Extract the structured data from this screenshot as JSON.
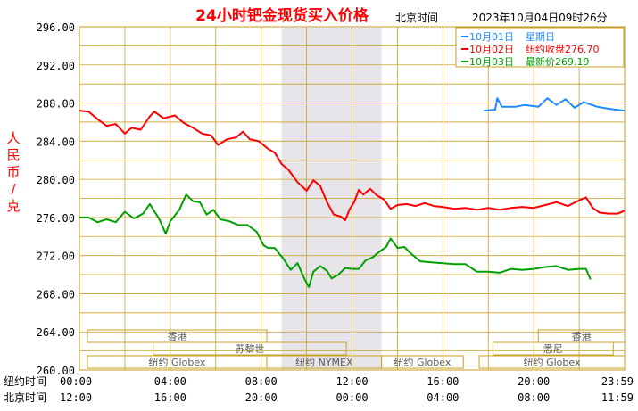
{
  "chart_data": {
    "type": "line",
    "title": "24小时钯金现货买入价格",
    "timezone_label": "北京时间",
    "timestamp": "2023年10月04日09时26分",
    "ylabel": "人民币/克",
    "ylim": [
      260,
      296
    ],
    "yticks": [
      "296.00",
      "292.00",
      "288.00",
      "284.00",
      "280.00",
      "276.00",
      "272.00",
      "268.00",
      "264.00",
      "260.00"
    ],
    "xlim": [
      0,
      24
    ],
    "x_rows": [
      {
        "label": "纽约时间",
        "ticks": [
          "00:00",
          "04:00",
          "08:00",
          "12:00",
          "16:00",
          "20:00",
          "23:59"
        ]
      },
      {
        "label": "北京时间",
        "ticks": [
          "12:00",
          "16:00",
          "20:00",
          "00:00",
          "04:00",
          "08:00",
          "11:59"
        ]
      }
    ],
    "legend": [
      {
        "date": "10月01日",
        "text": "星期日",
        "color": "#1e8bff"
      },
      {
        "date": "10月02日",
        "text": "纽约收盘276.70",
        "color": "#ff0000"
      },
      {
        "date": "10月03日",
        "text": "最新价269.19",
        "color": "#00a000"
      }
    ],
    "shaded_range": [
      8.9,
      13.3
    ],
    "markets": [
      {
        "name": "香港",
        "start": 0.35,
        "end": 8.25,
        "row": 0
      },
      {
        "name": "苏黎世",
        "start": 3.25,
        "end": 11.75,
        "row": 1
      },
      {
        "name": "纽约 Globex",
        "start": 0.35,
        "end": 8.25,
        "row": 2
      },
      {
        "name": "纽约 NYMEX",
        "start": 8.25,
        "end": 13.3,
        "row": 2
      },
      {
        "name": "纽约 Globex",
        "start": 13.3,
        "end": 16.9,
        "row": 2
      },
      {
        "name": "悉尼",
        "start": 18.2,
        "end": 23.5,
        "row": 1
      },
      {
        "name": "香港",
        "start": 20.2,
        "end": 24,
        "row": 0
      },
      {
        "name": "纽约 Globex",
        "start": 17.6,
        "end": 24,
        "row": 2
      }
    ],
    "series": [
      {
        "name": "10月01日",
        "color": "#1e8bff",
        "points": [
          [
            17.8,
            287.2
          ],
          [
            18.3,
            287.3
          ],
          [
            18.4,
            288.5
          ],
          [
            18.6,
            287.6
          ],
          [
            19.2,
            287.6
          ],
          [
            19.6,
            287.8
          ],
          [
            20.2,
            287.6
          ],
          [
            20.6,
            288.5
          ],
          [
            21.0,
            287.8
          ],
          [
            21.4,
            288.4
          ],
          [
            21.8,
            287.5
          ],
          [
            22.2,
            288.1
          ],
          [
            22.8,
            287.6
          ],
          [
            23.3,
            287.4
          ],
          [
            23.99,
            287.2
          ]
        ]
      },
      {
        "name": "10月02日",
        "color": "#ff0000",
        "points": [
          [
            0.0,
            287.2
          ],
          [
            0.4,
            287.1
          ],
          [
            0.8,
            286.3
          ],
          [
            1.2,
            285.6
          ],
          [
            1.6,
            285.8
          ],
          [
            2.0,
            284.8
          ],
          [
            2.3,
            285.4
          ],
          [
            2.7,
            285.2
          ],
          [
            3.1,
            286.6
          ],
          [
            3.3,
            287.1
          ],
          [
            3.7,
            286.4
          ],
          [
            4.2,
            286.7
          ],
          [
            4.6,
            285.9
          ],
          [
            5.0,
            285.4
          ],
          [
            5.4,
            284.8
          ],
          [
            5.8,
            284.6
          ],
          [
            6.1,
            283.6
          ],
          [
            6.5,
            284.2
          ],
          [
            6.9,
            284.4
          ],
          [
            7.2,
            285.0
          ],
          [
            7.5,
            284.2
          ],
          [
            7.9,
            284.0
          ],
          [
            8.3,
            283.2
          ],
          [
            8.6,
            282.8
          ],
          [
            8.9,
            281.6
          ],
          [
            9.2,
            281.0
          ],
          [
            9.6,
            279.7
          ],
          [
            10.0,
            278.8
          ],
          [
            10.3,
            279.9
          ],
          [
            10.6,
            279.3
          ],
          [
            10.9,
            277.6
          ],
          [
            11.2,
            276.3
          ],
          [
            11.5,
            276.1
          ],
          [
            11.7,
            275.7
          ],
          [
            11.9,
            276.9
          ],
          [
            12.1,
            277.6
          ],
          [
            12.3,
            278.9
          ],
          [
            12.5,
            278.4
          ],
          [
            12.8,
            279.0
          ],
          [
            13.1,
            278.3
          ],
          [
            13.4,
            277.9
          ],
          [
            13.7,
            276.9
          ],
          [
            14.0,
            277.3
          ],
          [
            14.4,
            277.4
          ],
          [
            14.8,
            277.2
          ],
          [
            15.2,
            277.5
          ],
          [
            15.6,
            277.2
          ],
          [
            16.0,
            277.1
          ],
          [
            16.5,
            276.9
          ],
          [
            17.0,
            277.0
          ],
          [
            17.5,
            276.8
          ],
          [
            18.0,
            277.0
          ],
          [
            18.5,
            276.8
          ],
          [
            19.0,
            277.0
          ],
          [
            19.5,
            277.1
          ],
          [
            20.0,
            277.0
          ],
          [
            20.5,
            277.3
          ],
          [
            21.0,
            277.6
          ],
          [
            21.5,
            277.2
          ],
          [
            22.0,
            277.8
          ],
          [
            22.3,
            278.1
          ],
          [
            22.6,
            277.0
          ],
          [
            22.9,
            276.5
          ],
          [
            23.3,
            276.4
          ],
          [
            23.7,
            276.4
          ],
          [
            23.99,
            276.7
          ]
        ]
      },
      {
        "name": "10月03日",
        "color": "#00a000",
        "points": [
          [
            0.0,
            276.0
          ],
          [
            0.4,
            276.0
          ],
          [
            0.8,
            275.5
          ],
          [
            1.2,
            275.8
          ],
          [
            1.6,
            275.5
          ],
          [
            2.0,
            276.6
          ],
          [
            2.4,
            275.9
          ],
          [
            2.8,
            276.4
          ],
          [
            3.1,
            277.4
          ],
          [
            3.5,
            275.9
          ],
          [
            3.8,
            274.3
          ],
          [
            4.0,
            275.6
          ],
          [
            4.4,
            276.8
          ],
          [
            4.7,
            278.4
          ],
          [
            5.0,
            277.7
          ],
          [
            5.3,
            277.6
          ],
          [
            5.6,
            276.3
          ],
          [
            5.9,
            276.8
          ],
          [
            6.2,
            275.8
          ],
          [
            6.6,
            275.6
          ],
          [
            7.0,
            275.2
          ],
          [
            7.4,
            275.2
          ],
          [
            7.8,
            274.5
          ],
          [
            8.1,
            273.1
          ],
          [
            8.3,
            272.8
          ],
          [
            8.6,
            272.8
          ],
          [
            9.0,
            271.6
          ],
          [
            9.3,
            270.5
          ],
          [
            9.6,
            271.2
          ],
          [
            9.9,
            269.6
          ],
          [
            10.1,
            268.7
          ],
          [
            10.3,
            270.3
          ],
          [
            10.6,
            270.9
          ],
          [
            10.9,
            270.4
          ],
          [
            11.1,
            269.6
          ],
          [
            11.4,
            270.0
          ],
          [
            11.7,
            270.7
          ],
          [
            12.0,
            270.6
          ],
          [
            12.3,
            270.6
          ],
          [
            12.6,
            271.5
          ],
          [
            12.9,
            271.8
          ],
          [
            13.2,
            272.4
          ],
          [
            13.5,
            272.9
          ],
          [
            13.7,
            273.8
          ],
          [
            14.0,
            272.8
          ],
          [
            14.3,
            272.9
          ],
          [
            14.6,
            272.2
          ],
          [
            15.0,
            271.4
          ],
          [
            15.5,
            271.3
          ],
          [
            16.0,
            271.2
          ],
          [
            16.5,
            271.1
          ],
          [
            17.0,
            271.1
          ],
          [
            17.5,
            270.3
          ],
          [
            18.0,
            270.3
          ],
          [
            18.5,
            270.2
          ],
          [
            19.0,
            270.6
          ],
          [
            19.5,
            270.5
          ],
          [
            20.0,
            270.6
          ],
          [
            20.5,
            270.8
          ],
          [
            21.0,
            270.9
          ],
          [
            21.5,
            270.5
          ],
          [
            22.0,
            270.6
          ],
          [
            22.3,
            270.6
          ],
          [
            22.5,
            269.5
          ]
        ]
      }
    ]
  }
}
